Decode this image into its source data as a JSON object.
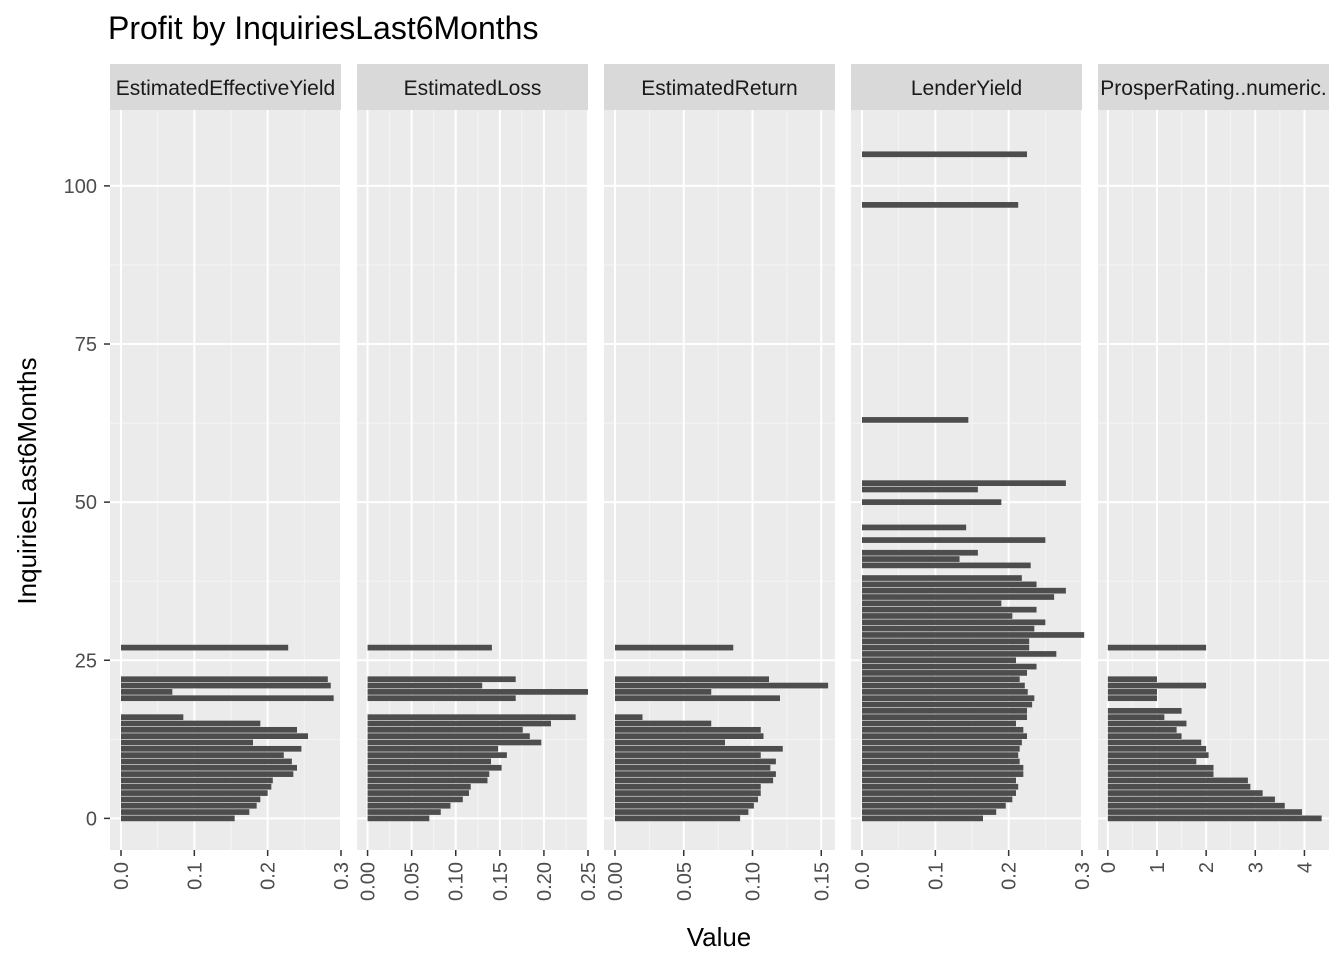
{
  "chart_data": {
    "type": "bar",
    "title": "Profit by InquiriesLast6Months",
    "xlabel": "Value",
    "ylabel": "InquiriesLast6Months",
    "ylim": [
      -5,
      112
    ],
    "y_ticks": [
      0,
      25,
      50,
      75,
      100
    ],
    "y_tick_labels": [
      "0",
      "25",
      "50",
      "75",
      "100"
    ],
    "grid": true,
    "legend": "none",
    "bar_color": "#4d4d4d",
    "panel_background": "#ebebeb",
    "strip_background": "#d9d9d9",
    "facets": [
      {
        "name": "EstimatedEffectiveYield",
        "xlim": [
          -0.015,
          0.3
        ],
        "x_ticks": [
          0.0,
          0.1,
          0.2,
          0.3
        ],
        "x_tick_labels": [
          "0.0",
          "0.1",
          "0.2",
          "0.3"
        ],
        "bars": [
          {
            "y": 0,
            "value": 0.155
          },
          {
            "y": 1,
            "value": 0.175
          },
          {
            "y": 2,
            "value": 0.185
          },
          {
            "y": 3,
            "value": 0.19
          },
          {
            "y": 4,
            "value": 0.2
          },
          {
            "y": 5,
            "value": 0.205
          },
          {
            "y": 6,
            "value": 0.207
          },
          {
            "y": 7,
            "value": 0.235
          },
          {
            "y": 8,
            "value": 0.24
          },
          {
            "y": 9,
            "value": 0.233
          },
          {
            "y": 10,
            "value": 0.222
          },
          {
            "y": 11,
            "value": 0.246
          },
          {
            "y": 12,
            "value": 0.18
          },
          {
            "y": 13,
            "value": 0.255
          },
          {
            "y": 14,
            "value": 0.24
          },
          {
            "y": 15,
            "value": 0.19
          },
          {
            "y": 16,
            "value": 0.085
          },
          {
            "y": 19,
            "value": 0.29
          },
          {
            "y": 20,
            "value": 0.07
          },
          {
            "y": 21,
            "value": 0.286
          },
          {
            "y": 22,
            "value": 0.282
          },
          {
            "y": 27,
            "value": 0.228
          }
        ]
      },
      {
        "name": "EstimatedLoss",
        "xlim": [
          -0.012,
          0.25
        ],
        "x_ticks": [
          0.0,
          0.05,
          0.1,
          0.15,
          0.2,
          0.25
        ],
        "x_tick_labels": [
          "0.00",
          "0.05",
          "0.10",
          "0.15",
          "0.20",
          "0.25"
        ],
        "bars": [
          {
            "y": 0,
            "value": 0.07
          },
          {
            "y": 1,
            "value": 0.083
          },
          {
            "y": 2,
            "value": 0.094
          },
          {
            "y": 3,
            "value": 0.108
          },
          {
            "y": 4,
            "value": 0.115
          },
          {
            "y": 5,
            "value": 0.117
          },
          {
            "y": 6,
            "value": 0.136
          },
          {
            "y": 7,
            "value": 0.138
          },
          {
            "y": 8,
            "value": 0.152
          },
          {
            "y": 9,
            "value": 0.14
          },
          {
            "y": 10,
            "value": 0.158
          },
          {
            "y": 11,
            "value": 0.148
          },
          {
            "y": 12,
            "value": 0.197
          },
          {
            "y": 13,
            "value": 0.184
          },
          {
            "y": 14,
            "value": 0.176
          },
          {
            "y": 15,
            "value": 0.208
          },
          {
            "y": 16,
            "value": 0.236
          },
          {
            "y": 19,
            "value": 0.168
          },
          {
            "y": 20,
            "value": 0.25
          },
          {
            "y": 21,
            "value": 0.13
          },
          {
            "y": 22,
            "value": 0.168
          },
          {
            "y": 27,
            "value": 0.141
          }
        ]
      },
      {
        "name": "EstimatedReturn",
        "xlim": [
          -0.008,
          0.16
        ],
        "x_ticks": [
          0.0,
          0.05,
          0.1,
          0.15
        ],
        "x_tick_labels": [
          "0.00",
          "0.05",
          "0.10",
          "0.15"
        ],
        "bars": [
          {
            "y": 0,
            "value": 0.091
          },
          {
            "y": 1,
            "value": 0.097
          },
          {
            "y": 2,
            "value": 0.101
          },
          {
            "y": 3,
            "value": 0.104
          },
          {
            "y": 4,
            "value": 0.106
          },
          {
            "y": 5,
            "value": 0.106
          },
          {
            "y": 6,
            "value": 0.115
          },
          {
            "y": 7,
            "value": 0.117
          },
          {
            "y": 8,
            "value": 0.113
          },
          {
            "y": 9,
            "value": 0.117
          },
          {
            "y": 10,
            "value": 0.106
          },
          {
            "y": 11,
            "value": 0.122
          },
          {
            "y": 12,
            "value": 0.08
          },
          {
            "y": 13,
            "value": 0.108
          },
          {
            "y": 14,
            "value": 0.106
          },
          {
            "y": 15,
            "value": 0.07
          },
          {
            "y": 16,
            "value": 0.02
          },
          {
            "y": 19,
            "value": 0.12
          },
          {
            "y": 20,
            "value": 0.07
          },
          {
            "y": 21,
            "value": 0.155
          },
          {
            "y": 22,
            "value": 0.112
          },
          {
            "y": 27,
            "value": 0.086
          }
        ]
      },
      {
        "name": "LenderYield",
        "xlim": [
          -0.015,
          0.3
        ],
        "x_ticks": [
          0.0,
          0.1,
          0.2,
          0.3
        ],
        "x_tick_labels": [
          "0.0",
          "0.1",
          "0.2",
          "0.3"
        ],
        "bars": [
          {
            "y": 0,
            "value": 0.165
          },
          {
            "y": 1,
            "value": 0.183
          },
          {
            "y": 2,
            "value": 0.196
          },
          {
            "y": 3,
            "value": 0.205
          },
          {
            "y": 4,
            "value": 0.21
          },
          {
            "y": 5,
            "value": 0.213
          },
          {
            "y": 6,
            "value": 0.21
          },
          {
            "y": 7,
            "value": 0.22
          },
          {
            "y": 8,
            "value": 0.22
          },
          {
            "y": 9,
            "value": 0.215
          },
          {
            "y": 10,
            "value": 0.213
          },
          {
            "y": 11,
            "value": 0.215
          },
          {
            "y": 12,
            "value": 0.218
          },
          {
            "y": 13,
            "value": 0.225
          },
          {
            "y": 14,
            "value": 0.22
          },
          {
            "y": 15,
            "value": 0.21
          },
          {
            "y": 16,
            "value": 0.225
          },
          {
            "y": 17,
            "value": 0.225
          },
          {
            "y": 18,
            "value": 0.232
          },
          {
            "y": 19,
            "value": 0.235
          },
          {
            "y": 20,
            "value": 0.226
          },
          {
            "y": 21,
            "value": 0.222
          },
          {
            "y": 22,
            "value": 0.215
          },
          {
            "y": 23,
            "value": 0.225
          },
          {
            "y": 24,
            "value": 0.238
          },
          {
            "y": 25,
            "value": 0.21
          },
          {
            "y": 26,
            "value": 0.265
          },
          {
            "y": 27,
            "value": 0.228
          },
          {
            "y": 28,
            "value": 0.228
          },
          {
            "y": 29,
            "value": 0.303
          },
          {
            "y": 30,
            "value": 0.235
          },
          {
            "y": 31,
            "value": 0.25
          },
          {
            "y": 32,
            "value": 0.205
          },
          {
            "y": 33,
            "value": 0.238
          },
          {
            "y": 34,
            "value": 0.19
          },
          {
            "y": 35,
            "value": 0.262
          },
          {
            "y": 36,
            "value": 0.278
          },
          {
            "y": 37,
            "value": 0.238
          },
          {
            "y": 38,
            "value": 0.218
          },
          {
            "y": 40,
            "value": 0.23
          },
          {
            "y": 41,
            "value": 0.133
          },
          {
            "y": 42,
            "value": 0.158
          },
          {
            "y": 44,
            "value": 0.25
          },
          {
            "y": 46,
            "value": 0.142
          },
          {
            "y": 50,
            "value": 0.19
          },
          {
            "y": 52,
            "value": 0.158
          },
          {
            "y": 53,
            "value": 0.278
          },
          {
            "y": 63,
            "value": 0.145
          },
          {
            "y": 97,
            "value": 0.213
          },
          {
            "y": 105,
            "value": 0.225
          }
        ]
      },
      {
        "name": "ProsperRating..numeric.",
        "xlim": [
          -0.2,
          4.5
        ],
        "x_ticks": [
          0,
          1,
          2,
          3,
          4
        ],
        "x_tick_labels": [
          "0",
          "1",
          "2",
          "3",
          "4"
        ],
        "bars": [
          {
            "y": 0,
            "value": 4.35
          },
          {
            "y": 1,
            "value": 3.95
          },
          {
            "y": 2,
            "value": 3.6
          },
          {
            "y": 3,
            "value": 3.4
          },
          {
            "y": 4,
            "value": 3.15
          },
          {
            "y": 5,
            "value": 2.9
          },
          {
            "y": 6,
            "value": 2.85
          },
          {
            "y": 7,
            "value": 2.15
          },
          {
            "y": 8,
            "value": 2.15
          },
          {
            "y": 9,
            "value": 1.8
          },
          {
            "y": 10,
            "value": 2.05
          },
          {
            "y": 11,
            "value": 2.0
          },
          {
            "y": 12,
            "value": 1.9
          },
          {
            "y": 13,
            "value": 1.5
          },
          {
            "y": 14,
            "value": 1.4
          },
          {
            "y": 15,
            "value": 1.6
          },
          {
            "y": 16,
            "value": 1.15
          },
          {
            "y": 17,
            "value": 1.5
          },
          {
            "y": 19,
            "value": 1.0
          },
          {
            "y": 20,
            "value": 1.0
          },
          {
            "y": 21,
            "value": 2.0
          },
          {
            "y": 22,
            "value": 1.0
          },
          {
            "y": 27,
            "value": 2.0
          }
        ]
      }
    ]
  }
}
